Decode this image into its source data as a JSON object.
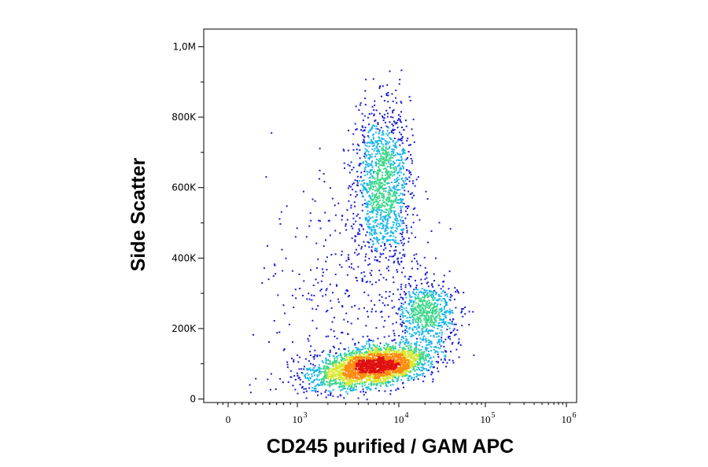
{
  "chart_data": {
    "type": "scatter",
    "title": "",
    "xlabel": "CD245 purified / GAM APC",
    "ylabel": "Side Scatter",
    "x_scale": "biexponential",
    "y_scale": "linear",
    "xlim": [
      -300,
      1000000
    ],
    "ylim": [
      -10000,
      1050000
    ],
    "grid": false,
    "coloring": "density heatmap (blue low, green, yellow, red high)",
    "colors": [
      "#1a1ad6",
      "#18b6e6",
      "#3ed88a",
      "#d8e82a",
      "#ff8a10",
      "#e01010"
    ],
    "y_ticks": [
      {
        "value": 0,
        "label": "0"
      },
      {
        "value": 200000,
        "label": "200K"
      },
      {
        "value": 400000,
        "label": "400K"
      },
      {
        "value": 600000,
        "label": "600K"
      },
      {
        "value": 800000,
        "label": "800K"
      },
      {
        "value": 1000000,
        "label": "1,0M"
      }
    ],
    "x_ticks": [
      {
        "value": 0,
        "base": "0",
        "exp": ""
      },
      {
        "value": 1000,
        "base": "10",
        "exp": "3"
      },
      {
        "value": 10000,
        "base": "10",
        "exp": "4"
      },
      {
        "value": 100000,
        "base": "10",
        "exp": "5"
      },
      {
        "value": 1000000,
        "base": "10",
        "exp": "6"
      }
    ],
    "populations": [
      {
        "center_x": 5500,
        "center_y": 95000,
        "sd_log_x": 0.3,
        "sd_y": 28000,
        "count": 2800,
        "density": "high"
      },
      {
        "center_x": 7000,
        "center_y": 620000,
        "sd_log_x": 0.14,
        "sd_y": 105000,
        "count": 1300,
        "density": "medium"
      },
      {
        "center_x": 21000,
        "center_y": 245000,
        "sd_log_x": 0.17,
        "sd_y": 45000,
        "count": 700,
        "density": "medium"
      },
      {
        "center_x": 3500,
        "center_y": 330000,
        "sd_log_x": 0.4,
        "sd_y": 170000,
        "count": 380,
        "density": "low"
      }
    ]
  }
}
